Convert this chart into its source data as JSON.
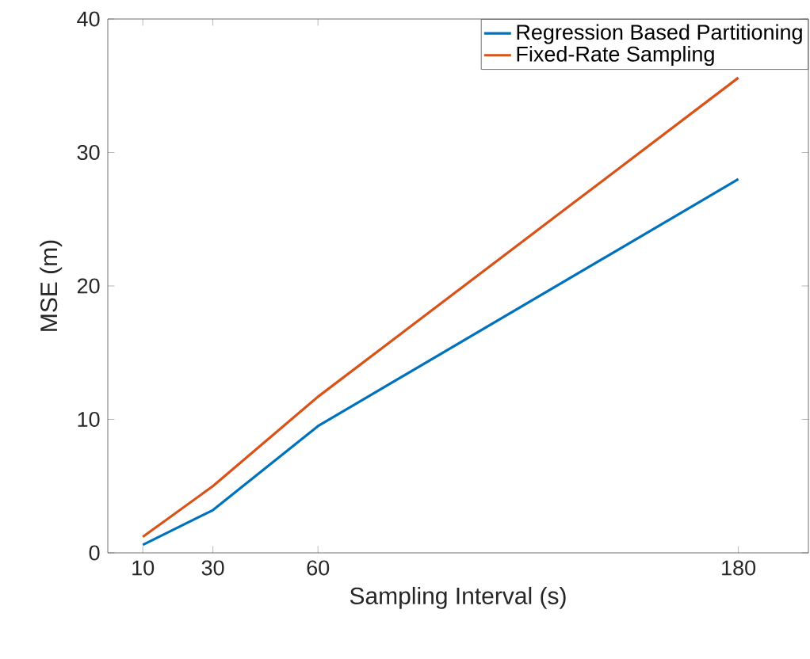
{
  "chart_data": {
    "type": "line",
    "xlabel": "Sampling Interval (s)",
    "ylabel": "MSE (m)",
    "x": [
      10,
      30,
      60,
      180
    ],
    "series": [
      {
        "name": "Regression Based Partitioning",
        "color": "#0072bd",
        "values": [
          0.6,
          3.2,
          9.5,
          28.0
        ]
      },
      {
        "name": "Fixed-Rate Sampling",
        "color": "#d95319",
        "values": [
          1.2,
          5.0,
          11.7,
          35.6
        ]
      }
    ],
    "xlim": [
      0,
      200
    ],
    "xticks": [
      10,
      30,
      60,
      180
    ],
    "ylim": [
      0,
      40
    ],
    "yticks": [
      0,
      10,
      20,
      30,
      40
    ],
    "grid": false,
    "legend": "top right",
    "marker": "none",
    "line_style": "solid"
  }
}
